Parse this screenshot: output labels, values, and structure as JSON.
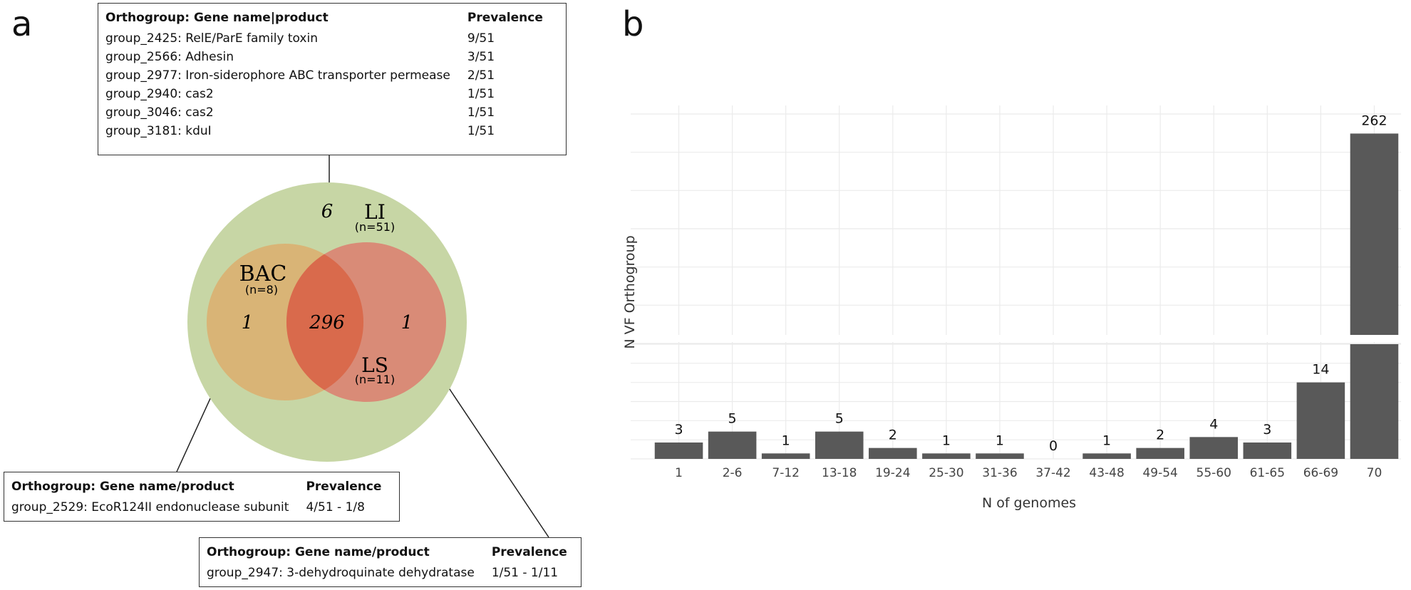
{
  "panel_a": {
    "letter": "a",
    "venn": {
      "outer": {
        "name": "LI",
        "n": "(n=51)",
        "unique": "6",
        "color": "#c7d6a5"
      },
      "left": {
        "name": "BAC",
        "n": "(n=8)",
        "unique": "1",
        "color": "#d9b476"
      },
      "right": {
        "name": "LS",
        "n": "(n=11)",
        "unique": "1",
        "color": "#dd7a6c"
      },
      "overlap": {
        "value": "296",
        "color": "#d96a4c"
      }
    },
    "table_top": {
      "headers": [
        "Orthogroup: Gene name|product",
        "Prevalence"
      ],
      "rows": [
        {
          "gene": "group_2425: RelE/ParE family toxin",
          "prev": "9/51"
        },
        {
          "gene": "group_2566: Adhesin",
          "prev": "3/51"
        },
        {
          "gene": "group_2977: Iron-siderophore ABC transporter permease",
          "prev": "2/51"
        },
        {
          "gene": "group_2940: cas2",
          "prev": "1/51"
        },
        {
          "gene": "group_3046: cas2",
          "prev": "1/51"
        },
        {
          "gene": "group_3181: kduI",
          "prev": "1/51"
        }
      ]
    },
    "table_left": {
      "headers": [
        "Orthogroup: Gene name/product",
        "Prevalence"
      ],
      "rows": [
        {
          "gene": "group_2529: EcoR124II endonuclease subunit",
          "prev": "4/51 - 1/8"
        }
      ]
    },
    "table_right": {
      "headers": [
        "Orthogroup: Gene name/product",
        "Prevalence"
      ],
      "rows": [
        {
          "gene": "group_2947: 3-dehydroquinate dehydratase",
          "prev": "1/51 - 1/11"
        }
      ]
    }
  },
  "panel_b": {
    "letter": "b"
  },
  "chart_data": {
    "type": "bar",
    "title": "",
    "xlabel": "N of genomes",
    "ylabel": "N VF Orthogroup",
    "categories": [
      "1",
      "2-6",
      "7-12",
      "13-18",
      "19-24",
      "25-30",
      "31-36",
      "37-42",
      "43-48",
      "49-54",
      "55-60",
      "61-65",
      "66-69",
      "70"
    ],
    "values": [
      3,
      5,
      1,
      5,
      2,
      1,
      1,
      0,
      1,
      2,
      4,
      3,
      14,
      262
    ],
    "data_labels": [
      "3",
      "5",
      "1",
      "5",
      "2",
      "1",
      "1",
      "0",
      "1",
      "2",
      "4",
      "3",
      "14",
      "262"
    ],
    "broken_y_axis": true,
    "lower_ylim": [
      0,
      21
    ],
    "upper_ylim": [
      90,
      262
    ],
    "grid": true,
    "bar_color": "#595959"
  }
}
